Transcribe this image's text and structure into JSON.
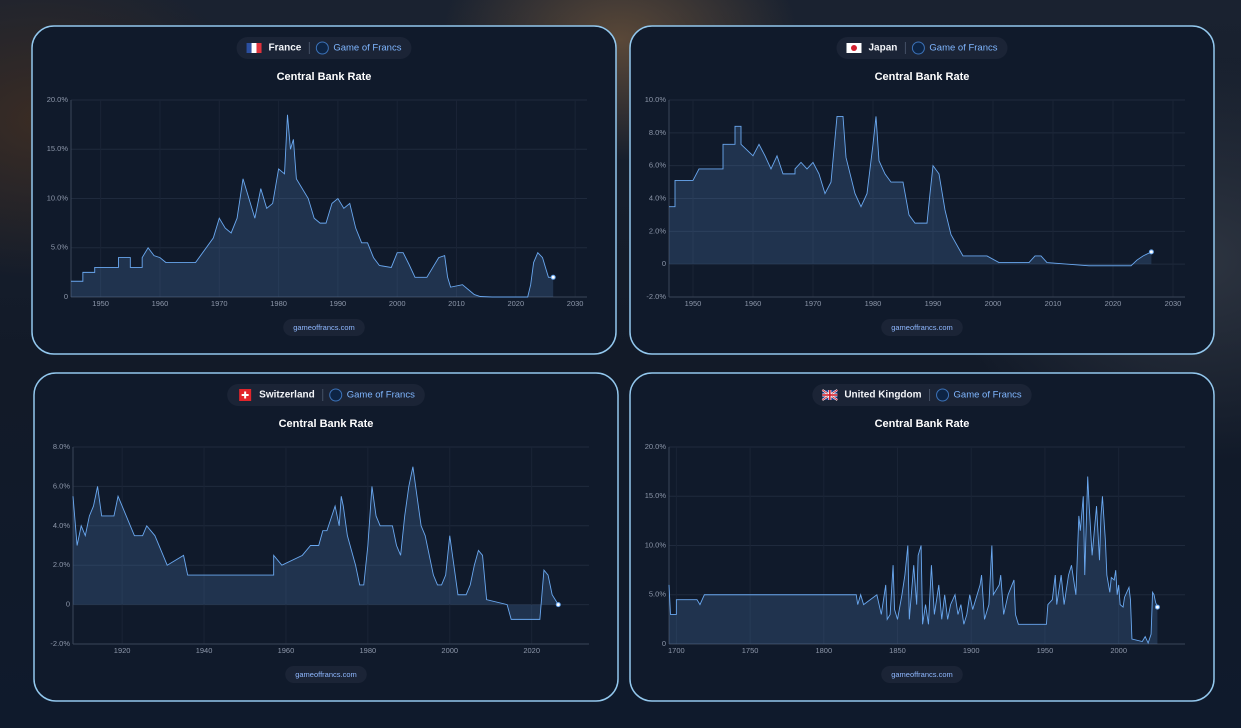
{
  "chart_data": [
    {
      "type": "line",
      "country": "France",
      "brand": "Game of Francs",
      "title": "Central Bank Rate",
      "source": "gameoffrancs.com",
      "color": "#6aa8f0",
      "grid": true,
      "xlim": [
        1945,
        2032
      ],
      "xticks": [
        1950,
        1960,
        1970,
        1980,
        1990,
        2000,
        2010,
        2020,
        2030
      ],
      "ylim": [
        0,
        20
      ],
      "yticks": [
        0,
        {
          "value": 5,
          "label": "5.0%"
        },
        {
          "value": 10,
          "label": "10.0%"
        },
        {
          "value": 15,
          "label": "15.0%"
        },
        {
          "value": 20,
          "label": "20.0%"
        }
      ],
      "x": [
        1945,
        1947,
        1947,
        1949,
        1949,
        1953,
        1953,
        1955,
        1955,
        1957,
        1957,
        1958,
        1959,
        1960,
        1961,
        1966,
        1969,
        1970,
        1971,
        1972,
        1973,
        1974,
        1975,
        1976,
        1977,
        1978,
        1979,
        1980,
        1981,
        1981.5,
        1982,
        1982.5,
        1983,
        1985,
        1986,
        1987,
        1988,
        1989,
        1990,
        1991,
        1992,
        1993,
        1994,
        1995,
        1996,
        1997,
        1999,
        2000,
        2001,
        2002,
        2003,
        2005,
        2006,
        2007,
        2008,
        2008.5,
        2009,
        2011,
        2012,
        2013,
        2014,
        2016,
        2022,
        2022.5,
        2023,
        2023.7,
        2024.5,
        2025,
        2025.5,
        2026.3
      ],
      "values": [
        1.6,
        1.6,
        2.5,
        2.5,
        3,
        3,
        4,
        4,
        3,
        3,
        4,
        5,
        4.2,
        4,
        3.5,
        3.5,
        6,
        8,
        7,
        6.5,
        8,
        12,
        10,
        8,
        11,
        9,
        9.5,
        13,
        12.5,
        18.5,
        15,
        16,
        12,
        10,
        8,
        7.5,
        7.5,
        9.5,
        10,
        9,
        9.5,
        7,
        5.5,
        5.5,
        4,
        3.2,
        3,
        4.5,
        4.5,
        3.3,
        2,
        2,
        3,
        4,
        4.2,
        2,
        1,
        1.25,
        0.75,
        0.25,
        0.05,
        0,
        0,
        1.25,
        3.5,
        4.5,
        4,
        3,
        2,
        2
      ]
    },
    {
      "type": "line",
      "country": "Japan",
      "brand": "Game of Francs",
      "title": "Central Bank Rate",
      "source": "gameoffrancs.com",
      "color": "#6aa8f0",
      "grid": true,
      "xlim": [
        1946,
        2032
      ],
      "xticks": [
        1950,
        1960,
        1970,
        1980,
        1990,
        2000,
        2010,
        2020,
        2030
      ],
      "ylim": [
        -2,
        10
      ],
      "yticks": [
        {
          "value": -2,
          "label": "-2.0%"
        },
        0,
        {
          "value": 2,
          "label": "2.0%"
        },
        {
          "value": 4,
          "label": "4.0%"
        },
        {
          "value": 6,
          "label": "6.0%"
        },
        {
          "value": 8,
          "label": "8.0%"
        },
        {
          "value": 10,
          "label": "10.0%"
        }
      ],
      "x": [
        1946,
        1947,
        1947,
        1950,
        1951,
        1955,
        1955,
        1957,
        1957,
        1958,
        1958,
        1960,
        1961,
        1962,
        1963,
        1964,
        1965,
        1967,
        1967,
        1968,
        1969,
        1970,
        1971,
        1972,
        1973,
        1973.5,
        1974,
        1975,
        1975.5,
        1977,
        1978,
        1979,
        1980,
        1980.5,
        1981,
        1982,
        1983,
        1985,
        1986,
        1987,
        1989,
        1989.5,
        1990,
        1991,
        1992,
        1993,
        1995,
        1999,
        2001,
        2006,
        2007,
        2008,
        2009,
        2016,
        2023,
        2024,
        2025,
        2026.4
      ],
      "values": [
        3.5,
        3.5,
        5.1,
        5.1,
        5.8,
        5.8,
        7.3,
        7.3,
        8.4,
        8.4,
        7.3,
        6.6,
        7.3,
        6.6,
        5.8,
        6.6,
        5.5,
        5.5,
        5.8,
        6.2,
        5.8,
        6.2,
        5.5,
        4.3,
        5,
        7,
        9,
        9,
        6.5,
        4.3,
        3.5,
        4.3,
        7.3,
        9,
        6.3,
        5.5,
        5,
        5,
        3,
        2.5,
        2.5,
        4.3,
        6,
        5.5,
        3.3,
        1.8,
        0.5,
        0.5,
        0.1,
        0.1,
        0.5,
        0.5,
        0.1,
        -0.1,
        -0.1,
        0.25,
        0.5,
        0.75
      ]
    },
    {
      "type": "line",
      "country": "Switzerland",
      "brand": "Game of Francs",
      "title": "Central Bank Rate",
      "source": "gameoffrancs.com",
      "color": "#6aa8f0",
      "grid": true,
      "xlim": [
        1908,
        2034
      ],
      "xticks": [
        1920,
        1940,
        1960,
        1980,
        2000,
        2020
      ],
      "ylim": [
        -2,
        8
      ],
      "yticks": [
        {
          "value": -2,
          "label": "-2.0%"
        },
        0,
        {
          "value": 2,
          "label": "2.0%"
        },
        {
          "value": 4,
          "label": "4.0%"
        },
        {
          "value": 6,
          "label": "6.0%"
        },
        {
          "value": 8,
          "label": "8.0%"
        }
      ],
      "x": [
        1908,
        1909,
        1910,
        1911,
        1912,
        1913,
        1914,
        1915,
        1918,
        1919,
        1920,
        1922,
        1923,
        1925,
        1926,
        1928,
        1930,
        1931,
        1935,
        1936,
        1957,
        1957,
        1959,
        1964,
        1966,
        1968,
        1969,
        1970,
        1972,
        1973,
        1973.5,
        1974,
        1975,
        1977,
        1978,
        1979,
        1980,
        1981,
        1982,
        1983,
        1986,
        1987,
        1988,
        1989,
        1990,
        1991,
        1992,
        1993,
        1994,
        1996,
        1997,
        1998,
        1999,
        2000,
        2001,
        2002,
        2004,
        2005,
        2006,
        2007,
        2008,
        2009,
        2014,
        2015,
        2022,
        2022.5,
        2023,
        2024,
        2024.5,
        2025,
        2026.5
      ],
      "values": [
        5.5,
        3,
        4,
        3.5,
        4.5,
        5,
        6,
        4.5,
        4.5,
        5.5,
        5,
        4,
        3.5,
        3.5,
        4,
        3.5,
        2.5,
        2,
        2.5,
        1.5,
        1.5,
        2.5,
        2,
        2.5,
        3,
        3,
        3.75,
        3.75,
        5,
        4,
        5.5,
        5,
        3.5,
        2,
        1,
        1,
        3,
        6,
        4.5,
        4,
        4,
        3,
        2.5,
        4.5,
        6,
        7,
        5.5,
        4,
        3.5,
        1.5,
        1,
        1,
        1.5,
        3.5,
        2,
        0.5,
        0.5,
        1,
        2,
        2.75,
        2.5,
        0.25,
        0,
        -0.75,
        -0.75,
        0.5,
        1.75,
        1.5,
        1,
        0.5,
        0
      ]
    },
    {
      "type": "line",
      "country": "United Kingdom",
      "brand": "Game of Francs",
      "title": "Central Bank Rate",
      "source": "gameoffrancs.com",
      "color": "#6aa8f0",
      "grid": true,
      "xlim": [
        1695,
        2045
      ],
      "xticks": [
        1700,
        1750,
        1800,
        1850,
        1900,
        1950,
        2000
      ],
      "ylim": [
        0,
        20
      ],
      "yticks": [
        0,
        {
          "value": 5,
          "label": "5.0%"
        },
        {
          "value": 10,
          "label": "10.0%"
        },
        {
          "value": 15,
          "label": "15.0%"
        },
        {
          "value": 20,
          "label": "20.0%"
        }
      ],
      "x": [
        1695,
        1696,
        1700,
        1700,
        1714,
        1716,
        1719,
        1822,
        1823,
        1825,
        1827,
        1836,
        1839,
        1842,
        1843,
        1845,
        1847,
        1848,
        1850,
        1853,
        1855,
        1857,
        1858,
        1861,
        1863,
        1864,
        1866,
        1867,
        1869,
        1871,
        1873,
        1875,
        1878,
        1880,
        1882,
        1884,
        1886,
        1889,
        1891,
        1893,
        1895,
        1897,
        1899,
        1901,
        1906,
        1907,
        1909,
        1912,
        1914,
        1915,
        1919,
        1920,
        1922,
        1925,
        1929,
        1930,
        1932,
        1951,
        1952,
        1955,
        1957,
        1958,
        1961,
        1963,
        1966,
        1968,
        1971,
        1973,
        1974,
        1976,
        1977,
        1979,
        1980,
        1982,
        1985,
        1987,
        1988,
        1989,
        1991,
        1992,
        1994,
        1995,
        1997,
        1998,
        1999,
        2000,
        2001,
        2003,
        2004,
        2007,
        2008,
        2009,
        2016,
        2018,
        2020,
        2022,
        2023,
        2024,
        2025,
        2026.3
      ],
      "values": [
        6,
        3,
        3,
        4.5,
        4.5,
        4,
        5,
        5,
        4,
        5,
        4,
        5,
        3,
        6,
        2.5,
        3,
        8,
        3.5,
        2.5,
        5,
        7,
        10,
        2.5,
        8,
        4,
        9,
        10,
        2,
        4,
        2,
        8,
        3,
        6,
        2.5,
        5,
        2.5,
        4,
        5,
        3,
        4,
        2,
        3,
        5,
        3.5,
        6,
        7,
        2.5,
        4,
        10,
        5,
        6,
        7,
        3,
        5,
        6.5,
        3,
        2,
        2,
        4,
        4.5,
        7,
        4,
        7,
        4,
        7,
        8,
        5,
        13,
        11.5,
        15,
        7,
        17,
        14,
        9,
        14,
        8.5,
        13,
        15,
        10.5,
        7,
        5.25,
        6.75,
        6.5,
        7.5,
        5,
        6,
        4,
        3.75,
        4.75,
        5.75,
        4.5,
        0.5,
        0.25,
        0.75,
        0.1,
        1,
        5.25,
        5,
        4.25,
        3.75
      ]
    }
  ]
}
